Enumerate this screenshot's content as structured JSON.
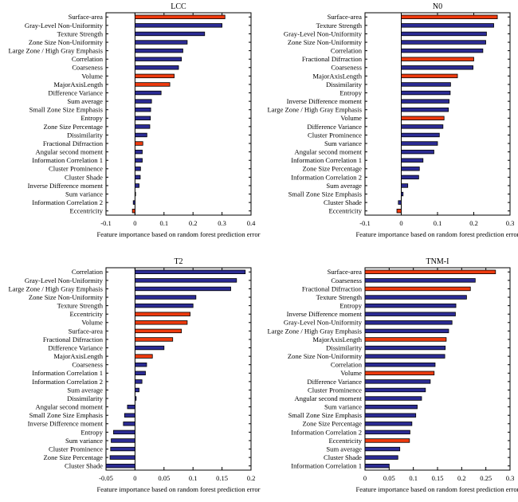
{
  "figure": {
    "background": "#ffffff"
  },
  "colors": {
    "red_bar": "#ee3a0e",
    "blue_bar": "#2b2b94",
    "axis": "#000000"
  },
  "chart_data": [
    {
      "type": "bar",
      "orientation": "horizontal",
      "title": "LCC",
      "xlabel": "Feature importance based on random forest prediction error",
      "xlim": [
        -0.1,
        0.4
      ],
      "xticks": [
        -0.1,
        0,
        0.1,
        0.2,
        0.3,
        0.4
      ],
      "grid": false,
      "legend": "none",
      "categories": [
        "Surface-area",
        "Gray-Level Non-Uniformity",
        "Texture Strength",
        "Zone Size Non-Uniformity",
        "Large Zone / High Gray Emphasis",
        "Correlation",
        "Coarseness",
        "Volume",
        "MajorAxisLength",
        "Difference Variance",
        "Sum average",
        "Small Zone Size Emphasis",
        "Entropy",
        "Zone Size Percentage",
        "Dissimilarity",
        "Fractional Difrraction",
        "Angular second moment",
        "Information Correlation 1",
        "Cluster Prominence",
        "Cluster Shade",
        "Inverse Difference moment",
        "Sum variance",
        "Information Correlation 2",
        "Eccentricity"
      ],
      "values": [
        0.31,
        0.3,
        0.24,
        0.18,
        0.165,
        0.16,
        0.15,
        0.135,
        0.12,
        0.09,
        0.057,
        0.054,
        0.053,
        0.051,
        0.041,
        0.027,
        0.025,
        0.025,
        0.019,
        0.018,
        0.014,
        0.002,
        -0.006,
        -0.009
      ],
      "bar_colors": [
        "red",
        "blue",
        "blue",
        "blue",
        "blue",
        "blue",
        "blue",
        "red",
        "red",
        "blue",
        "blue",
        "blue",
        "blue",
        "blue",
        "blue",
        "red",
        "blue",
        "blue",
        "blue",
        "blue",
        "blue",
        "blue",
        "blue",
        "red"
      ]
    },
    {
      "type": "bar",
      "orientation": "horizontal",
      "title": "N0",
      "xlabel": "Feature importance based on random forest prediction error",
      "xlim": [
        -0.1,
        0.3
      ],
      "xticks": [
        -0.1,
        0,
        0.1,
        0.2,
        0.3
      ],
      "grid": false,
      "legend": "none",
      "categories": [
        "Surface-area",
        "Texture Strength",
        "Gray-Level Non-Uniformity",
        "Zone Size Non-Uniformity",
        "Correlation",
        "Fractional Difrraction",
        "Coarseness",
        "MajorAxisLength",
        "Dissimilarity",
        "Entropy",
        "Inverse Difference moment",
        "Large Zone / High Gray Emphasis",
        "Volume",
        "Difference Variance",
        "Cluster Prominence",
        "Sum variance",
        "Angular second moment",
        "Information Correlation 1",
        "Zone Size Percentage",
        "Information Correlation 2",
        "Sum average",
        "Small Zone Size Emphasis",
        "Cluster Shade",
        "Eccentricity"
      ],
      "values": [
        0.265,
        0.255,
        0.235,
        0.233,
        0.225,
        0.2,
        0.198,
        0.155,
        0.136,
        0.135,
        0.132,
        0.13,
        0.118,
        0.115,
        0.105,
        0.1,
        0.09,
        0.06,
        0.05,
        0.048,
        0.018,
        0.005,
        -0.008,
        -0.012
      ],
      "bar_colors": [
        "red",
        "blue",
        "blue",
        "blue",
        "blue",
        "red",
        "blue",
        "red",
        "blue",
        "blue",
        "blue",
        "blue",
        "red",
        "blue",
        "blue",
        "blue",
        "blue",
        "blue",
        "blue",
        "blue",
        "blue",
        "blue",
        "blue",
        "red"
      ]
    },
    {
      "type": "bar",
      "orientation": "horizontal",
      "title": "T2",
      "xlabel": "Feature importance based on random forest prediction error",
      "xlim": [
        -0.05,
        0.2
      ],
      "xticks": [
        -0.05,
        0,
        0.05,
        0.1,
        0.15,
        0.2
      ],
      "grid": false,
      "legend": "none",
      "categories": [
        "Correlation",
        "Gray-Level Non-Uniformity",
        "Large Zone / High Gray Emphasis",
        "Zone Size Non-Uniformity",
        "Texture Strength",
        "Eccentricity",
        "Volume",
        "Surface-area",
        "Fractional Difrraction",
        "Difference Variance",
        "MajorAxisLength",
        "Coarseness",
        "Information Correlation 1",
        "Information Correlation 2",
        "Sum average",
        "Dissimilarity",
        "Angular second moment",
        "Small Zone Size Emphasis",
        "Inverse Difference moment",
        "Entropy",
        "Sum variance",
        "Cluster Prominence",
        "Zone Size Percentage",
        "Cluster Shade"
      ],
      "values": [
        0.19,
        0.175,
        0.165,
        0.105,
        0.1,
        0.095,
        0.09,
        0.08,
        0.065,
        0.05,
        0.03,
        0.02,
        0.018,
        0.012,
        0.007,
        0.002,
        -0.013,
        -0.018,
        -0.02,
        -0.037,
        -0.041,
        -0.042,
        -0.043,
        -0.05
      ],
      "bar_colors": [
        "blue",
        "blue",
        "blue",
        "blue",
        "blue",
        "red",
        "red",
        "red",
        "red",
        "blue",
        "red",
        "blue",
        "blue",
        "blue",
        "blue",
        "blue",
        "blue",
        "blue",
        "blue",
        "blue",
        "blue",
        "blue",
        "blue",
        "blue"
      ]
    },
    {
      "type": "bar",
      "orientation": "horizontal",
      "title": "TNM-I",
      "xlabel": "Feature importance based on random forest prediction error",
      "xlim": [
        0,
        0.3
      ],
      "xticks": [
        0,
        0.05,
        0.1,
        0.15,
        0.2,
        0.25,
        0.3
      ],
      "grid": false,
      "legend": "none",
      "categories": [
        "Surface-area",
        "Coarseness",
        "Fractional Difrraction",
        "Texture Strength",
        "Entropy",
        "Inverse Difference moment",
        "Gray-Level Non-Uniformity",
        "Large Zone / High Gray Emphasis",
        "MajorAxisLength",
        "Dissimilarity",
        "Zone Size Non-Uniformity",
        "Correlation",
        "Volume",
        "Difference Variance",
        "Cluster Prominence",
        "Angular second moment",
        "Sum variance",
        "Small Zone Size Emphasis",
        "Zone Size Percentage",
        "Information Correlation 2",
        "Eccentricity",
        "Sum average",
        "Cluster Shade",
        "Information Correlation 1"
      ],
      "values": [
        0.27,
        0.228,
        0.218,
        0.21,
        0.188,
        0.187,
        0.18,
        0.173,
        0.168,
        0.166,
        0.165,
        0.145,
        0.143,
        0.135,
        0.125,
        0.117,
        0.108,
        0.105,
        0.097,
        0.093,
        0.092,
        0.072,
        0.068,
        0.05
      ],
      "bar_colors": [
        "red",
        "blue",
        "red",
        "blue",
        "blue",
        "blue",
        "blue",
        "blue",
        "red",
        "blue",
        "blue",
        "blue",
        "red",
        "blue",
        "blue",
        "blue",
        "blue",
        "blue",
        "blue",
        "blue",
        "red",
        "blue",
        "blue",
        "blue"
      ]
    }
  ]
}
